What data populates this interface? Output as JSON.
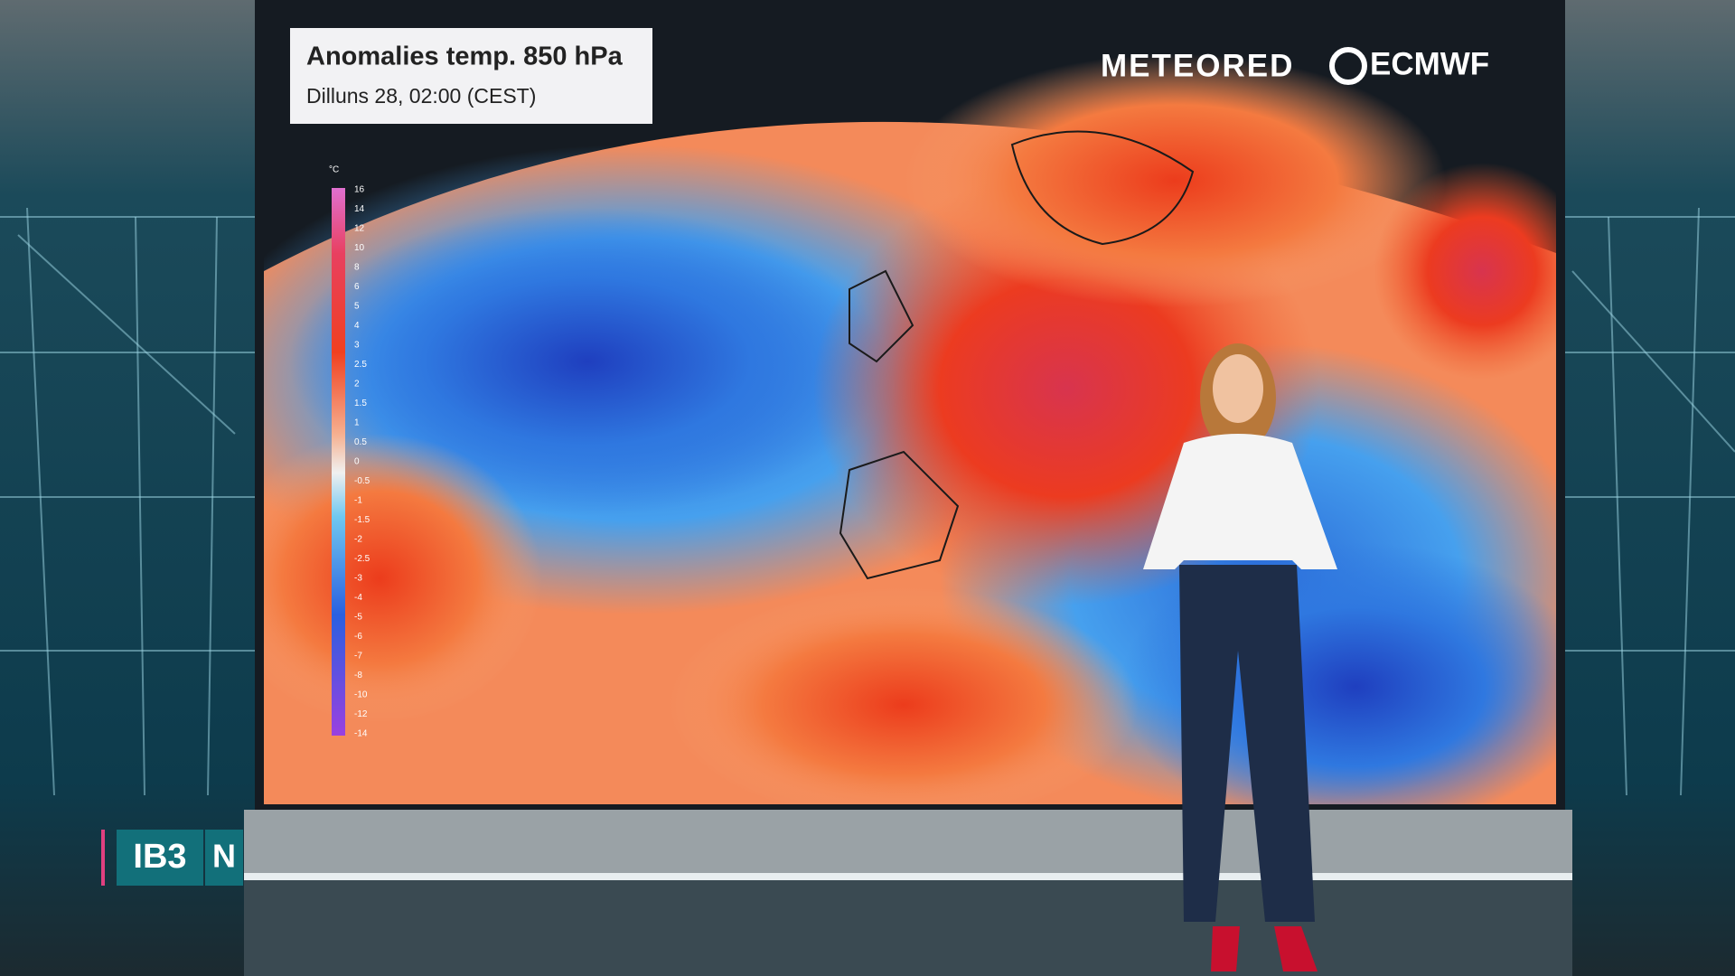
{
  "header": {
    "title": "Anomalies temp. 850 hPa",
    "subtitle": "Dilluns 28, 02:00 (CEST)"
  },
  "brands": {
    "meteored": "METEORED",
    "ecmwf": "ECMWF"
  },
  "legend": {
    "unit": "°C",
    "labels": [
      16,
      14,
      12,
      10,
      8,
      6,
      5,
      4,
      3,
      2.5,
      2,
      1.5,
      1,
      0.5,
      0,
      -0.5,
      -1,
      -1.5,
      -2,
      -2.5,
      -3,
      -4,
      -5,
      -6,
      -7,
      -8,
      -10,
      -12,
      -14
    ]
  },
  "channel": {
    "name": "IB3",
    "mark": "N"
  }
}
